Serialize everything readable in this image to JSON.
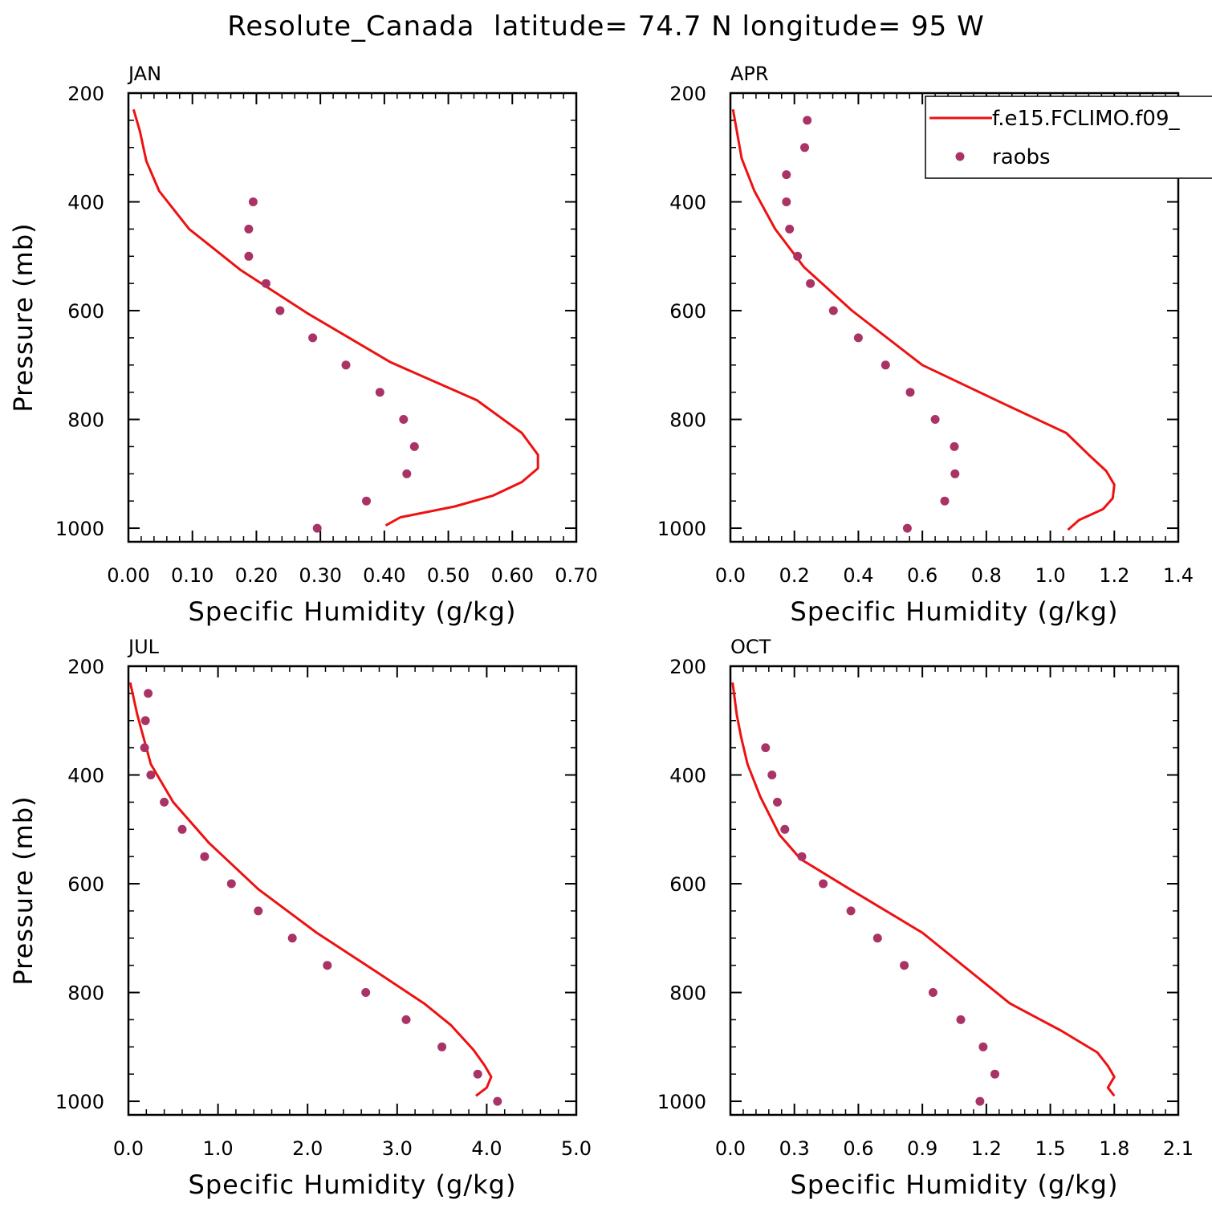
{
  "page_title": "Resolute_Canada  latitude= 74.7 N longitude= 95 W",
  "colors": {
    "model": "#ee1111",
    "obs": "#aa3366",
    "axis": "#000000"
  },
  "legend": {
    "placement": "top-right",
    "entries": [
      {
        "label": "f.e15.FCLIMO.f09_",
        "kind": "line"
      },
      {
        "label": "raobs",
        "kind": "marker"
      }
    ]
  },
  "chart_data": [
    {
      "type": "line",
      "title": "JAN",
      "xlabel": "Specific Humidity (g/kg)",
      "ylabel": "Pressure (mb)",
      "xlim": [
        0,
        0.7
      ],
      "ylim": [
        200,
        1025
      ],
      "x_ticks": [
        "0.00",
        "0.10",
        "0.20",
        "0.30",
        "0.40",
        "0.50",
        "0.60",
        "0.70"
      ],
      "y_ticks": [
        "200",
        "400",
        "600",
        "800",
        "1000"
      ],
      "series": [
        {
          "name": "f.e15.FCLIMO.f09_",
          "kind": "line",
          "points": [
            [
              0.008,
              230
            ],
            [
              0.018,
              270
            ],
            [
              0.028,
              325
            ],
            [
              0.048,
              380
            ],
            [
              0.095,
              450
            ],
            [
              0.175,
              525
            ],
            [
              0.28,
              605
            ],
            [
              0.41,
              695
            ],
            [
              0.545,
              765
            ],
            [
              0.615,
              825
            ],
            [
              0.64,
              865
            ],
            [
              0.64,
              890
            ],
            [
              0.615,
              915
            ],
            [
              0.57,
              940
            ],
            [
              0.51,
              960
            ],
            [
              0.425,
              980
            ],
            [
              0.402,
              995
            ]
          ]
        },
        {
          "name": "raobs",
          "kind": "scatter",
          "points": [
            [
              0.195,
              400
            ],
            [
              0.188,
              450
            ],
            [
              0.188,
              500
            ],
            [
              0.215,
              550
            ],
            [
              0.237,
              600
            ],
            [
              0.288,
              650
            ],
            [
              0.34,
              700
            ],
            [
              0.393,
              750
            ],
            [
              0.43,
              800
            ],
            [
              0.447,
              850
            ],
            [
              0.435,
              900
            ],
            [
              0.372,
              950
            ],
            [
              0.295,
              1000
            ]
          ]
        }
      ]
    },
    {
      "type": "line",
      "title": "APR",
      "xlabel": "Specific Humidity (g/kg)",
      "ylabel": "",
      "xlim": [
        0,
        1.4
      ],
      "ylim": [
        200,
        1025
      ],
      "x_ticks": [
        "0.0",
        "0.2",
        "0.4",
        "0.6",
        "0.8",
        "1.0",
        "1.2",
        "1.4"
      ],
      "y_ticks": [
        "200",
        "400",
        "600",
        "800",
        "1000"
      ],
      "series": [
        {
          "name": "f.e15.FCLIMO.f09_",
          "kind": "line",
          "points": [
            [
              0.008,
              230
            ],
            [
              0.02,
              270
            ],
            [
              0.035,
              320
            ],
            [
              0.075,
              380
            ],
            [
              0.14,
              450
            ],
            [
              0.23,
              520
            ],
            [
              0.38,
              600
            ],
            [
              0.6,
              700
            ],
            [
              0.85,
              770
            ],
            [
              1.05,
              825
            ],
            [
              1.12,
              865
            ],
            [
              1.175,
              895
            ],
            [
              1.2,
              920
            ],
            [
              1.195,
              945
            ],
            [
              1.165,
              965
            ],
            [
              1.09,
              985
            ],
            [
              1.055,
              1003
            ]
          ]
        },
        {
          "name": "raobs",
          "kind": "scatter",
          "points": [
            [
              0.24,
              250
            ],
            [
              0.232,
              300
            ],
            [
              0.175,
              350
            ],
            [
              0.175,
              400
            ],
            [
              0.185,
              450
            ],
            [
              0.21,
              500
            ],
            [
              0.25,
              550
            ],
            [
              0.322,
              600
            ],
            [
              0.4,
              650
            ],
            [
              0.485,
              700
            ],
            [
              0.562,
              750
            ],
            [
              0.64,
              800
            ],
            [
              0.7,
              850
            ],
            [
              0.702,
              900
            ],
            [
              0.67,
              950
            ],
            [
              0.553,
              1000
            ]
          ]
        }
      ]
    },
    {
      "type": "line",
      "title": "JUL",
      "xlabel": "Specific Humidity (g/kg)",
      "ylabel": "Pressure (mb)",
      "xlim": [
        0,
        5.0
      ],
      "ylim": [
        200,
        1025
      ],
      "x_ticks": [
        "0.0",
        "1.0",
        "2.0",
        "3.0",
        "4.0",
        "5.0"
      ],
      "y_ticks": [
        "200",
        "400",
        "600",
        "800",
        "1000"
      ],
      "series": [
        {
          "name": "f.e15.FCLIMO.f09_",
          "kind": "line",
          "points": [
            [
              0.02,
              230
            ],
            [
              0.1,
              290
            ],
            [
              0.25,
              380
            ],
            [
              0.5,
              450
            ],
            [
              0.9,
              525
            ],
            [
              1.45,
              610
            ],
            [
              2.1,
              690
            ],
            [
              2.75,
              760
            ],
            [
              3.3,
              820
            ],
            [
              3.6,
              860
            ],
            [
              3.85,
              905
            ],
            [
              3.98,
              935
            ],
            [
              4.05,
              955
            ],
            [
              4.0,
              975
            ],
            [
              3.88,
              990
            ]
          ]
        },
        {
          "name": "raobs",
          "kind": "scatter",
          "points": [
            [
              0.22,
              250
            ],
            [
              0.19,
              300
            ],
            [
              0.18,
              350
            ],
            [
              0.25,
              400
            ],
            [
              0.4,
              450
            ],
            [
              0.6,
              500
            ],
            [
              0.85,
              550
            ],
            [
              1.15,
              600
            ],
            [
              1.45,
              650
            ],
            [
              1.83,
              700
            ],
            [
              2.22,
              750
            ],
            [
              2.65,
              800
            ],
            [
              3.1,
              850
            ],
            [
              3.5,
              900
            ],
            [
              3.9,
              950
            ],
            [
              4.12,
              1000
            ]
          ]
        }
      ]
    },
    {
      "type": "line",
      "title": "OCT",
      "xlabel": "Specific Humidity (g/kg)",
      "ylabel": "",
      "xlim": [
        0,
        2.1
      ],
      "ylim": [
        200,
        1025
      ],
      "x_ticks": [
        "0.0",
        "0.3",
        "0.6",
        "0.9",
        "1.2",
        "1.5",
        "1.8",
        "2.1"
      ],
      "y_ticks": [
        "200",
        "400",
        "600",
        "800",
        "1000"
      ],
      "series": [
        {
          "name": "f.e15.FCLIMO.f09_",
          "kind": "line",
          "points": [
            [
              0.01,
              230
            ],
            [
              0.03,
              290
            ],
            [
              0.05,
              330
            ],
            [
              0.08,
              380
            ],
            [
              0.14,
              440
            ],
            [
              0.23,
              510
            ],
            [
              0.33,
              555
            ],
            [
              0.56,
              610
            ],
            [
              0.9,
              690
            ],
            [
              1.31,
              820
            ],
            [
              1.55,
              870
            ],
            [
              1.72,
              910
            ],
            [
              1.77,
              935
            ],
            [
              1.8,
              955
            ],
            [
              1.77,
              975
            ],
            [
              1.8,
              990
            ]
          ]
        },
        {
          "name": "raobs",
          "kind": "scatter",
          "points": [
            [
              0.165,
              350
            ],
            [
              0.195,
              400
            ],
            [
              0.22,
              450
            ],
            [
              0.255,
              500
            ],
            [
              0.335,
              550
            ],
            [
              0.435,
              600
            ],
            [
              0.565,
              650
            ],
            [
              0.69,
              700
            ],
            [
              0.815,
              750
            ],
            [
              0.95,
              800
            ],
            [
              1.08,
              850
            ],
            [
              1.185,
              900
            ],
            [
              1.24,
              950
            ],
            [
              1.17,
              1000
            ]
          ]
        }
      ]
    }
  ]
}
